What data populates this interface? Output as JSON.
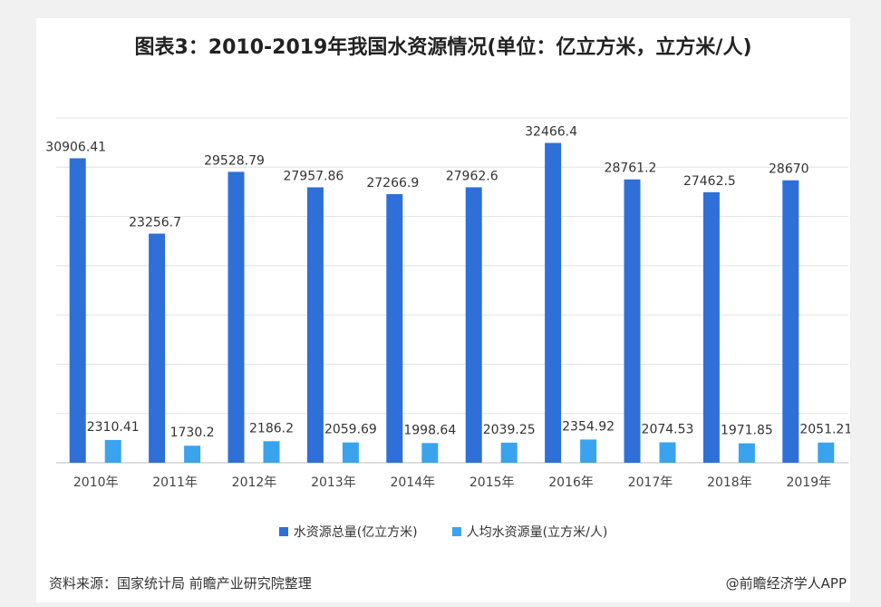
{
  "chart_data": {
    "type": "bar",
    "title": "图表3：2010-2019年我国水资源情况(单位：亿立方米，立方米/人)",
    "categories": [
      "2010年",
      "2011年",
      "2012年",
      "2013年",
      "2014年",
      "2015年",
      "2016年",
      "2017年",
      "2018年",
      "2019年"
    ],
    "series": [
      {
        "name": "水资源总量(亿立方米)",
        "color": "#2e6fd8",
        "values": [
          30906.41,
          23256.7,
          29528.79,
          27957.86,
          27266.9,
          27962.6,
          32466.4,
          28761.2,
          27462.5,
          28670
        ],
        "labels": [
          "30906.41",
          "23256.7",
          "29528.79",
          "27957.86",
          "27266.9",
          "27962.6",
          "32466.4",
          "28761.2",
          "27462.5",
          "28670"
        ]
      },
      {
        "name": "人均水资源量(立方米/人)",
        "color": "#3aa3ee",
        "values": [
          2310.41,
          1730.2,
          2186.2,
          2059.69,
          1998.64,
          2039.25,
          2354.92,
          2074.53,
          1971.85,
          2051.21
        ],
        "labels": [
          "2310.41",
          "1730.2",
          "2186.2",
          "2059.69",
          "1998.64",
          "2039.25",
          "2354.92",
          "2074.53",
          "1971.85",
          "2051.21"
        ]
      }
    ],
    "ylim": [
      0,
      35000
    ],
    "grid": true,
    "legend": "bottom"
  },
  "footer": {
    "source": "资料来源：国家统计局 前瞻产业研究院整理",
    "credit": "@前瞻经济学人APP"
  }
}
